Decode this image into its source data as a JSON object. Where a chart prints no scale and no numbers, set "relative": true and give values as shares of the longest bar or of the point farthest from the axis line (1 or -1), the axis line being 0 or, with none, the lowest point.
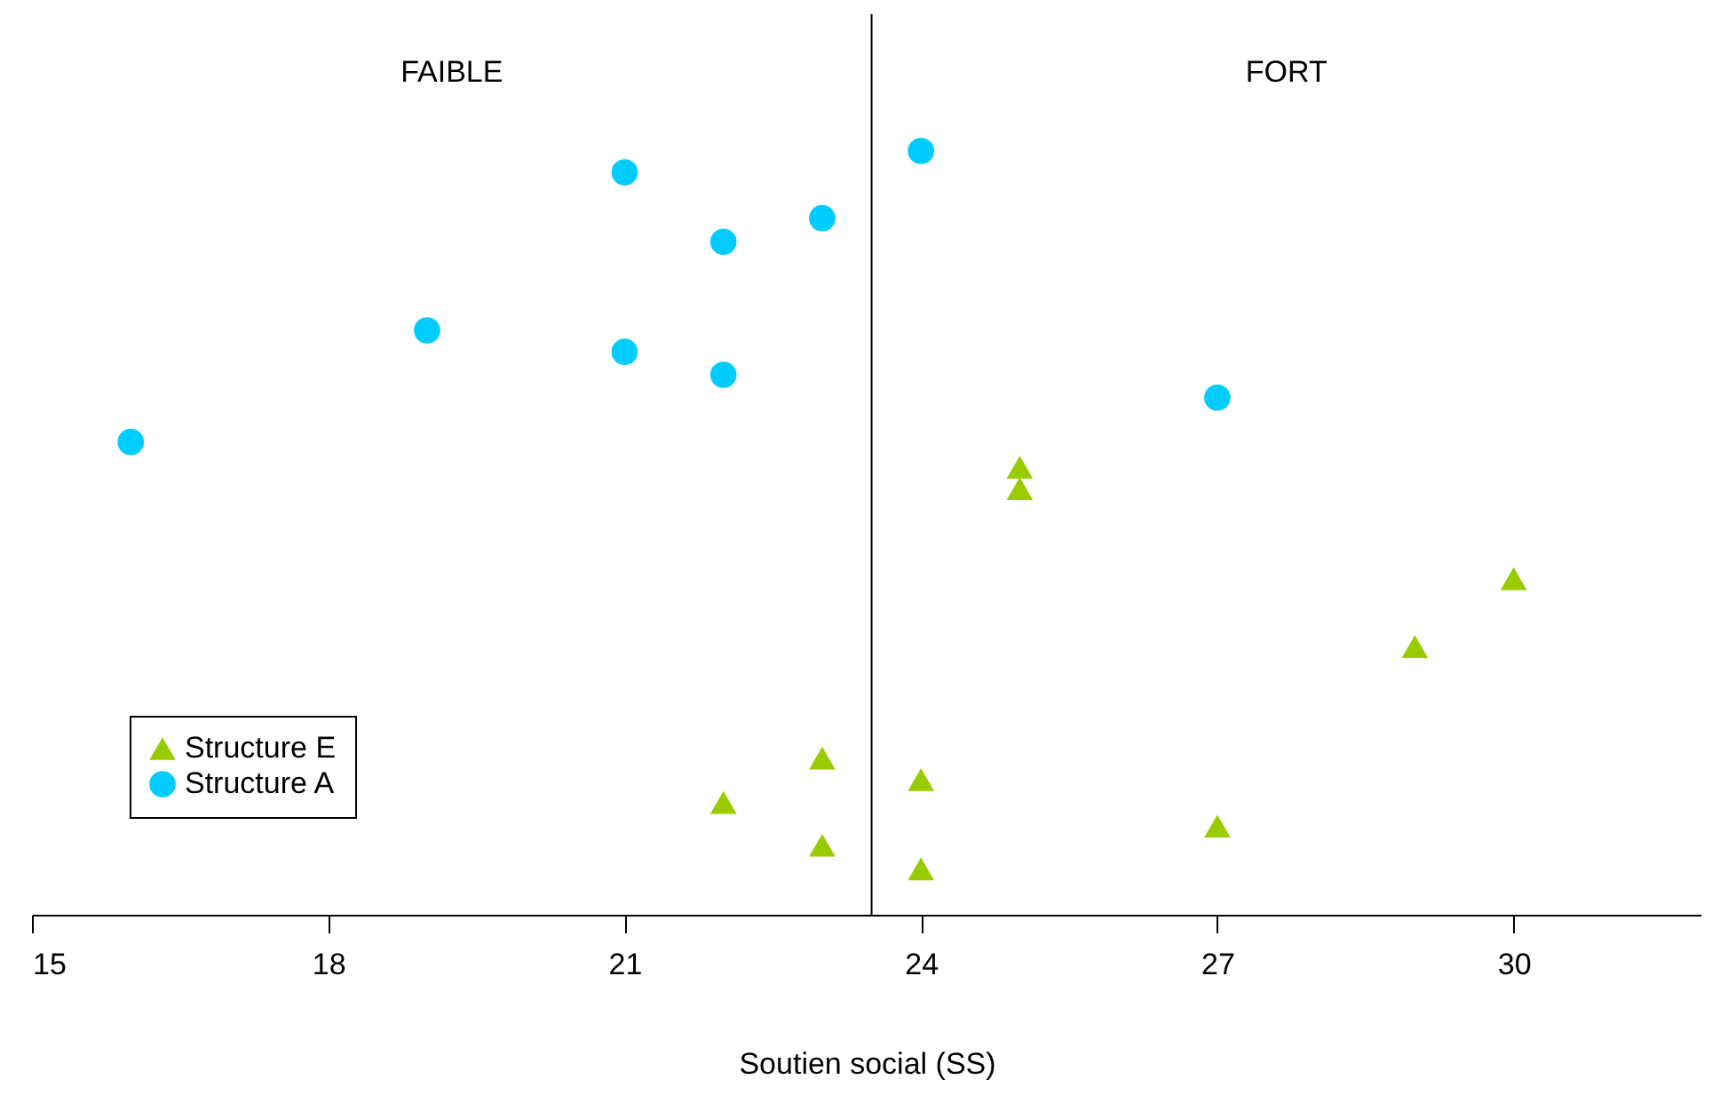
{
  "chart_data": {
    "type": "scatter",
    "relative": true,
    "xlabel": "Soutien social (SS)",
    "xlim": [
      15,
      31.9
    ],
    "xticks": [
      15,
      18,
      21,
      24,
      27,
      30
    ],
    "grid": false,
    "legend": "bottom left",
    "annotations": [
      "FAIBLE",
      "FORT"
    ],
    "ref_lines": [
      {
        "axis": "x",
        "value": 23.5,
        "color": "#000000"
      }
    ],
    "series": [
      {
        "name": "Structure E",
        "color": "#99cc00",
        "marker": "triangle",
        "x": [
          22,
          23,
          23,
          24,
          24,
          25,
          25,
          27,
          29,
          30
        ],
        "values": [
          0.147,
          0.205,
          0.091,
          0.177,
          0.06,
          0.586,
          0.558,
          0.116,
          0.351,
          0.44
        ]
      },
      {
        "name": "Structure A",
        "color": "#00ccff",
        "marker": "circle",
        "x": [
          16,
          19,
          21,
          21,
          22,
          22,
          23,
          24,
          27
        ],
        "values": [
          0.619,
          0.765,
          0.972,
          0.737,
          0.881,
          0.707,
          0.912,
          1,
          0.677
        ]
      }
    ]
  }
}
